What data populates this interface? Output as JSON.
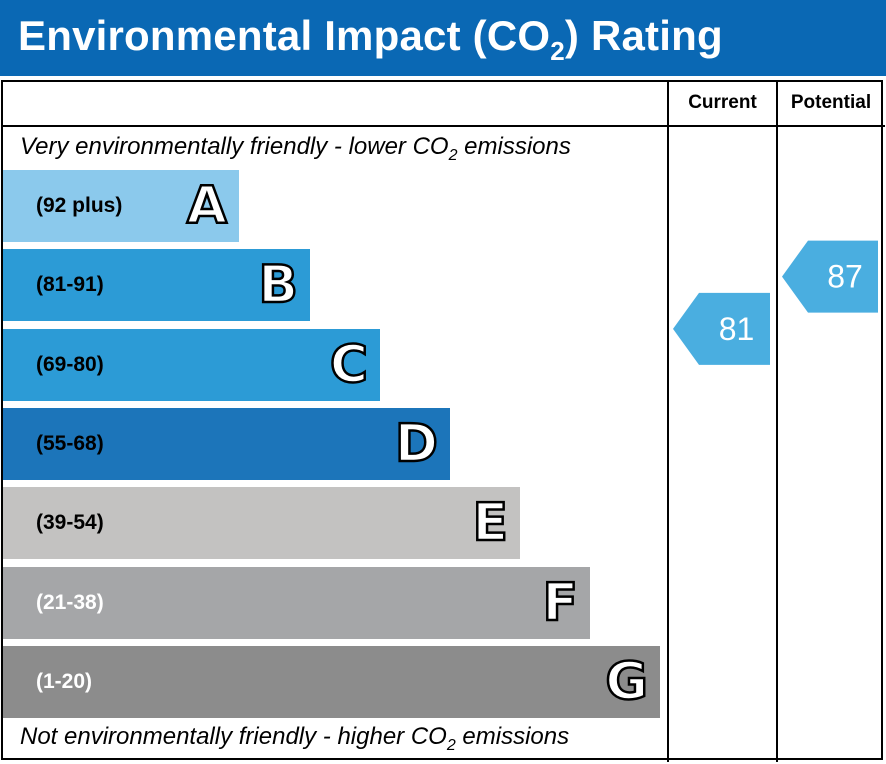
{
  "header": {
    "title_pre": "Environmental Impact (CO",
    "title_sub": "2",
    "title_post": ") Rating"
  },
  "columns": {
    "current": "Current",
    "potential": "Potential"
  },
  "captions": {
    "top_pre": "Very environmentally friendly - lower CO",
    "top_sub": "2",
    "top_post": " emissions",
    "bottom_pre": "Not environmentally friendly - higher CO",
    "bottom_sub": "2",
    "bottom_post": " emissions"
  },
  "chart_data": {
    "type": "bar",
    "bands": [
      {
        "letter": "A",
        "range": "(92 plus)",
        "color": "#8bc9ec",
        "text_color": "#000000"
      },
      {
        "letter": "B",
        "range": "(81-91)",
        "color": "#2c9bd6",
        "text_color": "#000000"
      },
      {
        "letter": "C",
        "range": "(69-80)",
        "color": "#2c9bd6",
        "text_color": "#000000"
      },
      {
        "letter": "D",
        "range": "(55-68)",
        "color": "#1c75ba",
        "text_color": "#000000"
      },
      {
        "letter": "E",
        "range": "(39-54)",
        "color": "#c3c2c1",
        "text_color": "#000000"
      },
      {
        "letter": "F",
        "range": "(21-38)",
        "color": "#a5a6a8",
        "text_color": "#ffffff"
      },
      {
        "letter": "G",
        "range": "(1-20)",
        "color": "#8c8c8c",
        "text_color": "#ffffff"
      }
    ],
    "current": {
      "value": 81,
      "label": "81",
      "band": "B",
      "color": "#4aaee0"
    },
    "potential": {
      "value": 87,
      "label": "87",
      "band": "B",
      "color": "#4aaee0"
    }
  }
}
